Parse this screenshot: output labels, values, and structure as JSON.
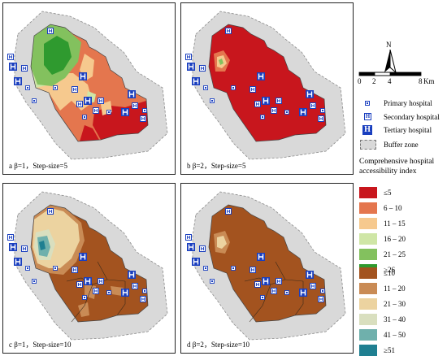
{
  "panels": [
    {
      "id": "a",
      "caption": "a  β=1，Step-size=5",
      "scheme": "index",
      "pattern": "a"
    },
    {
      "id": "b",
      "caption": "b  β=2，Step-size=5",
      "scheme": "index",
      "pattern": "b"
    },
    {
      "id": "c",
      "caption": "c  β=1，Step-size=10",
      "scheme": "step10",
      "pattern": "c"
    },
    {
      "id": "d",
      "caption": "d  β=2，Step-size=10",
      "scheme": "step10",
      "pattern": "d"
    }
  ],
  "north_arrow": {
    "label": "N"
  },
  "scale_bar": {
    "ticks": [
      "0",
      "2",
      "4",
      "8"
    ],
    "unit": "Km"
  },
  "symbol_legend": {
    "primary": "Primary hospital",
    "secondary": "Secondary hospital",
    "tertiary": "Tertiary hospital",
    "buffer": "Buffer zone"
  },
  "index_legend": {
    "title_line1": "Comprehensive hospital",
    "title_line2": "accessibility index",
    "classes_step5": [
      {
        "label": "≤5",
        "color": "#c8161d"
      },
      {
        "label": "6 – 10",
        "color": "#e4764e"
      },
      {
        "label": "11 – 15",
        "color": "#f6c98e"
      },
      {
        "label": "16 – 20",
        "color": "#cfe6a6"
      },
      {
        "label": "21 – 25",
        "color": "#83c15e"
      },
      {
        "label": "≥26",
        "color": "#2f9a2f"
      }
    ],
    "classes_step10": [
      {
        "label": "≤10",
        "color": "#a3531f"
      },
      {
        "label": "11 – 20",
        "color": "#c98b55"
      },
      {
        "label": "21 – 30",
        "color": "#ecd3a0"
      },
      {
        "label": "31 – 40",
        "color": "#d9dfbf"
      },
      {
        "label": "41 – 50",
        "color": "#6fb0ac"
      },
      {
        "label": "≥51",
        "color": "#1f7f91"
      }
    ]
  },
  "colors": {
    "buffer": "#d9d9d9",
    "hospital": "#1a3fbf"
  }
}
